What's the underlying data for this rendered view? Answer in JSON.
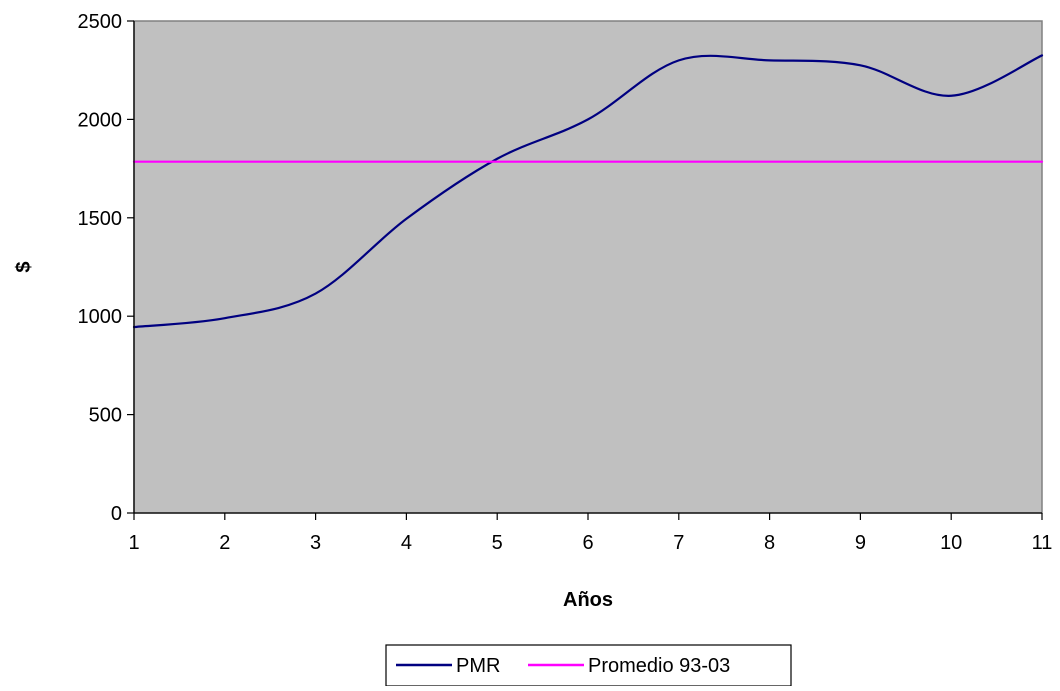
{
  "chart_data": {
    "type": "line",
    "title": "",
    "xlabel": "Años",
    "ylabel": "$",
    "x": [
      1,
      2,
      3,
      4,
      5,
      6,
      7,
      8,
      9,
      10,
      11
    ],
    "xlim": [
      1,
      11
    ],
    "ylim": [
      0,
      2500
    ],
    "x_ticks": [
      "1",
      "2",
      "3",
      "4",
      "5",
      "6",
      "7",
      "8",
      "9",
      "10",
      "11"
    ],
    "y_ticks": [
      "0",
      "500",
      "1000",
      "1500",
      "2000",
      "2500"
    ],
    "grid": false,
    "legend_position": "bottom",
    "plot_background": "#c0c0c0",
    "series": [
      {
        "name": "PMR",
        "color": "#000080",
        "smooth": true,
        "values": [
          945,
          990,
          1115,
          1495,
          1800,
          2000,
          2300,
          2300,
          2275,
          2120,
          2325
        ]
      },
      {
        "name": "Promedio 93-03",
        "color": "#ff00ff",
        "smooth": false,
        "values": [
          1785,
          1785,
          1785,
          1785,
          1785,
          1785,
          1785,
          1785,
          1785,
          1785,
          1785
        ]
      }
    ]
  }
}
